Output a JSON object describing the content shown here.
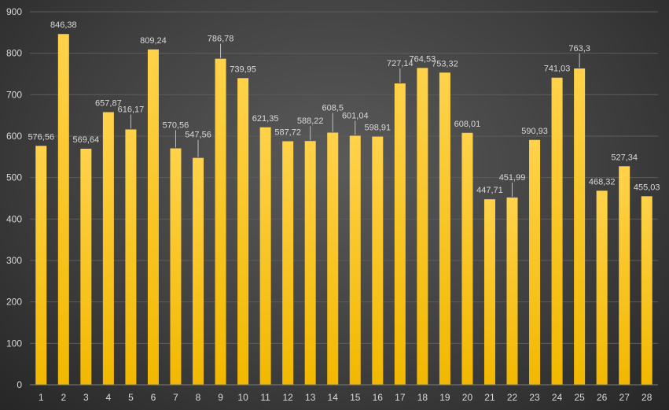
{
  "chart_data": {
    "type": "bar",
    "title": "",
    "xlabel": "",
    "ylabel": "",
    "ylim": [
      0,
      900
    ],
    "yticks": [
      0,
      100,
      200,
      300,
      400,
      500,
      600,
      700,
      800,
      900
    ],
    "grid": true,
    "legend": "none",
    "categories": [
      "1",
      "2",
      "3",
      "4",
      "5",
      "6",
      "7",
      "8",
      "9",
      "10",
      "11",
      "12",
      "13",
      "14",
      "15",
      "16",
      "17",
      "18",
      "19",
      "20",
      "21",
      "22",
      "23",
      "24",
      "25",
      "26",
      "27",
      "28"
    ],
    "values": [
      576.56,
      846.38,
      569.64,
      657.87,
      616.17,
      809.24,
      570.56,
      547.56,
      786.78,
      739.95,
      621.35,
      587.72,
      588.22,
      608.5,
      601.04,
      598.91,
      727.14,
      764.53,
      753.32,
      608.01,
      447.71,
      451.99,
      590.93,
      741.03,
      763.3,
      468.32,
      527.34,
      455.03
    ],
    "data_labels": [
      "576,56",
      "846,38",
      "569,64",
      "657,87",
      "616,17",
      "809,24",
      "570,56",
      "547,56",
      "786,78",
      "739,95",
      "621,35",
      "587,72",
      "588,22",
      "608,5",
      "601,04",
      "598,91",
      "727,14",
      "764,53",
      "753,32",
      "608,01",
      "447,71",
      "451,99",
      "590,93",
      "741,03",
      "763,3",
      "468,32",
      "527,34",
      "455,03"
    ],
    "bar_color_top": "#ffd24a",
    "bar_color_bottom": "#f2b800"
  }
}
